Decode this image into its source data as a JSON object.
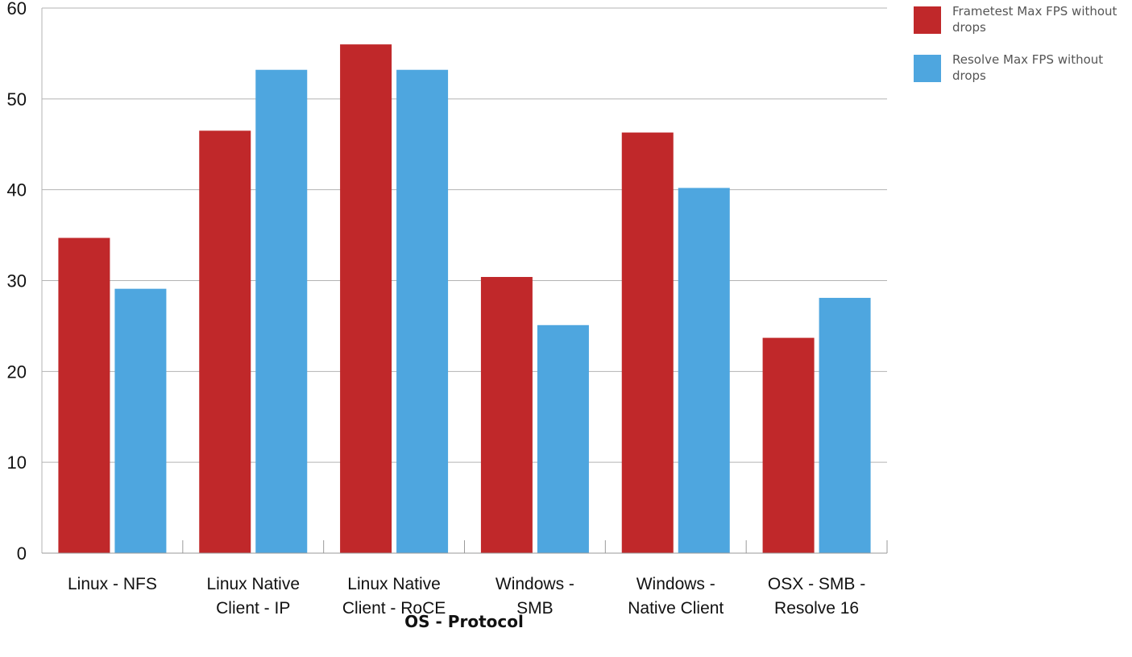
{
  "chart_data": {
    "type": "bar",
    "categories": [
      [
        "Linux - NFS"
      ],
      [
        "Linux Native",
        "Client - IP"
      ],
      [
        "Linux Native",
        "Client - RoCE"
      ],
      [
        "Windows -",
        "SMB"
      ],
      [
        "Windows -",
        "Native Client"
      ],
      [
        "OSX - SMB -",
        "Resolve 16"
      ]
    ],
    "series": [
      {
        "name": "Frametest Max FPS without drops",
        "color": "#c0282a",
        "values": [
          34.7,
          46.5,
          56,
          30.4,
          46.3,
          23.7
        ]
      },
      {
        "name": "Resolve Max FPS without drops",
        "color": "#4ea6df",
        "values": [
          29.1,
          53.2,
          53.2,
          25.1,
          40.2,
          28.1
        ]
      }
    ],
    "title": "",
    "xlabel": "OS - Protocol",
    "ylabel": "",
    "ylim": [
      0,
      60
    ],
    "yticks": [
      "0",
      "10",
      "20",
      "30",
      "40",
      "50",
      "60"
    ],
    "grid": true,
    "legend_position": "top-right"
  }
}
